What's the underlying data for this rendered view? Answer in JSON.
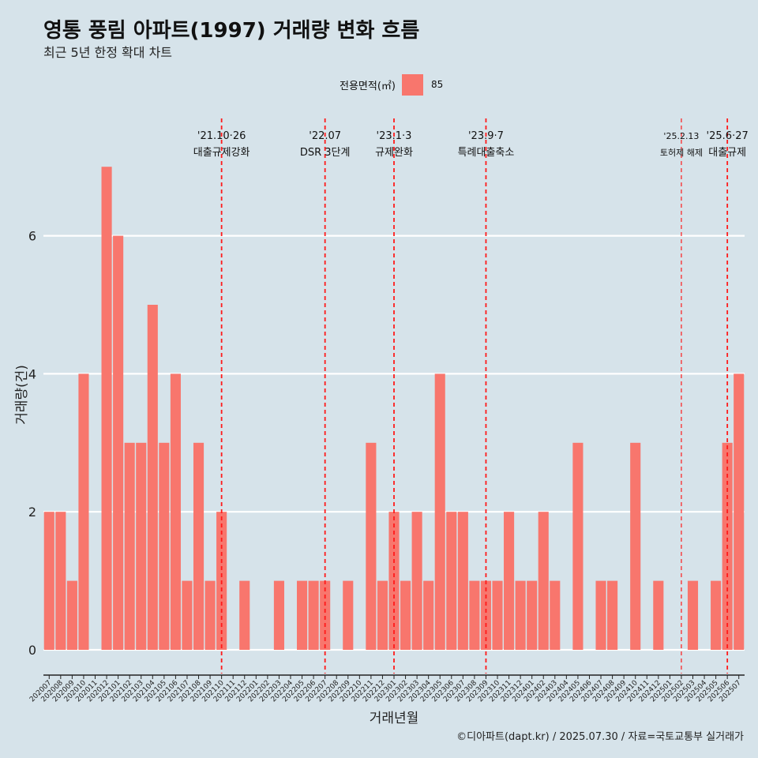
{
  "header": {
    "title": "영통 풍림 아파트(1997) 거래량 변화 흐름",
    "subtitle": "최근 5년 한정 확대 차트"
  },
  "legend": {
    "title": "전용면적(㎡)",
    "key": "85",
    "color": "#f8766d"
  },
  "caption": "©디아파트(dapt.kr) / 2025.07.30 / 자료=국토교통부 실거래가",
  "chart_data": {
    "type": "bar",
    "xlabel": "거래년월",
    "ylabel": "거래량(건)",
    "ylim": [
      0,
      7
    ],
    "yticks": [
      0,
      2,
      4,
      6
    ],
    "grid": true,
    "legend_position": "top",
    "bar_color": "#f8766d",
    "categories": [
      "202007",
      "202008",
      "202009",
      "202010",
      "202011",
      "202012",
      "202101",
      "202102",
      "202103",
      "202104",
      "202105",
      "202106",
      "202107",
      "202108",
      "202109",
      "202110",
      "202111",
      "202112",
      "202201",
      "202202",
      "202203",
      "202204",
      "202205",
      "202206",
      "202207",
      "202208",
      "202209",
      "202210",
      "202211",
      "202212",
      "202301",
      "202302",
      "202303",
      "202304",
      "202305",
      "202306",
      "202307",
      "202308",
      "202309",
      "202310",
      "202311",
      "202312",
      "202401",
      "202402",
      "202403",
      "202404",
      "202405",
      "202406",
      "202407",
      "202408",
      "202409",
      "202410",
      "202411",
      "202412",
      "202501",
      "202502",
      "202503",
      "202504",
      "202505",
      "202506",
      "202507"
    ],
    "series": [
      {
        "name": "85",
        "values": [
          2,
          2,
          1,
          4,
          0,
          7,
          6,
          3,
          3,
          5,
          3,
          4,
          1,
          3,
          1,
          2,
          0,
          1,
          0,
          0,
          1,
          0,
          1,
          1,
          1,
          0,
          1,
          0,
          3,
          1,
          2,
          1,
          2,
          1,
          4,
          2,
          2,
          1,
          1,
          1,
          2,
          1,
          1,
          2,
          1,
          0,
          3,
          0,
          1,
          1,
          0,
          3,
          0,
          1,
          0,
          0,
          1,
          0,
          1,
          3,
          4
        ]
      }
    ],
    "annotations": [
      {
        "date": "'21.10·26",
        "label": "대출규제강화",
        "x": "202110"
      },
      {
        "date": "'22.07",
        "label": "DSR 3단계",
        "x": "202207"
      },
      {
        "date": "'23.1·3",
        "label": "규제완화",
        "x": "202301"
      },
      {
        "date": "'23.9·7",
        "label": "특례대출축소",
        "x": "202309"
      },
      {
        "date": "'25.2.13",
        "label": "토허제 해제",
        "x": "202502"
      },
      {
        "date": "'25.6·27",
        "label": "대출규제",
        "x": "202506"
      }
    ]
  }
}
